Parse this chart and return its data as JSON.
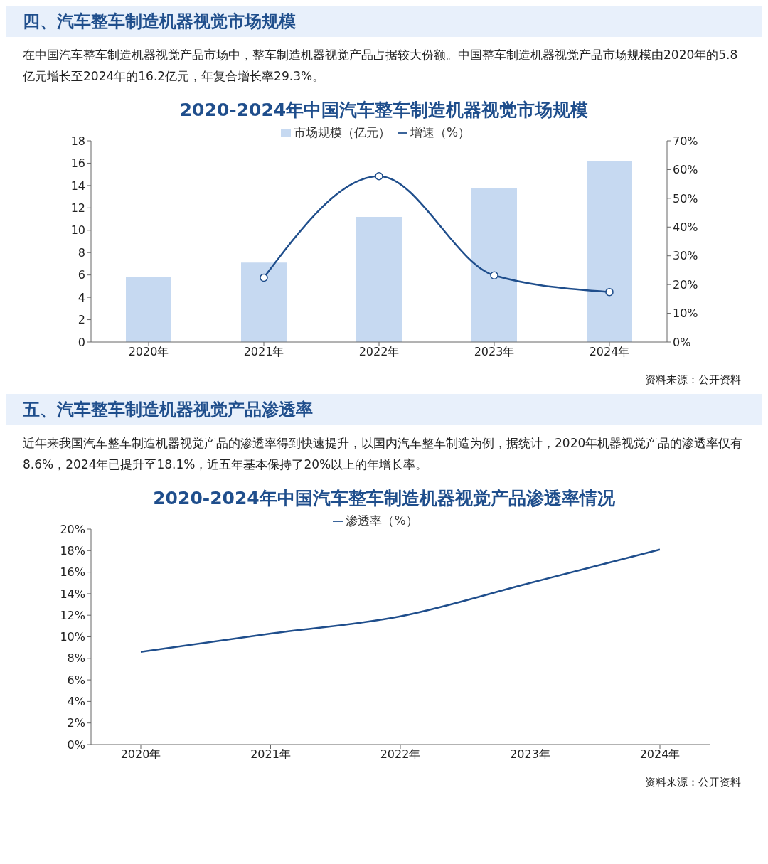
{
  "chart_data": [
    {
      "type": "bar",
      "title": "2020-2024年中国汽车整车制造机器视觉市场规模",
      "annotations": [
        "四、汽车整车制造机器视觉市场规模",
        "在中国汽车整车制造机器视觉产品市场中，整车制造机器视觉产品占据较大份额。中国整车制造机器视觉产品市场规模由2020年的5.8亿元增长至2024年的16.2亿元，年复合增长率29.3%。",
        "资料来源：公开资料"
      ],
      "categories": [
        "2020年",
        "2021年",
        "2022年",
        "2023年",
        "2024年"
      ],
      "series": [
        {
          "name": "市场规模（亿元）",
          "type": "bar",
          "color": "#c6d9f1",
          "values": [
            5.8,
            7.1,
            11.2,
            13.8,
            16.2
          ]
        },
        {
          "name": "增速（%）",
          "type": "line",
          "axis": "y2",
          "color": "#1f4e8c",
          "marker": "circle",
          "values": [
            null,
            22.4,
            57.7,
            23.2,
            17.4
          ]
        }
      ],
      "ylim": [
        0,
        18
      ],
      "yticks": [
        0,
        2,
        4,
        6,
        8,
        10,
        12,
        14,
        16,
        18
      ],
      "y2lim": [
        0,
        70
      ],
      "y2ticks": [
        {
          "value": 0,
          "label": "0%"
        },
        {
          "value": 10,
          "label": "10%"
        },
        {
          "value": 20,
          "label": "20%"
        },
        {
          "value": 30,
          "label": "30%"
        },
        {
          "value": 40,
          "label": "40%"
        },
        {
          "value": 50,
          "label": "50%"
        },
        {
          "value": 60,
          "label": "60%"
        },
        {
          "value": 70,
          "label": "70%"
        }
      ],
      "legend": "top",
      "grid": false
    },
    {
      "type": "line",
      "title": "2020-2024年中国汽车整车制造机器视觉产品渗透率情况",
      "annotations": [
        "五、汽车整车制造机器视觉产品渗透率",
        "近年来我国汽车整车制造机器视觉产品的渗透率得到快速提升，以国内汽车整车制造为例，据统计，2020年机器视觉产品的渗透率仅有8.6%，2024年已提升至18.1%，近五年基本保持了20%以上的年增长率。",
        "资料来源：公开资料"
      ],
      "categories": [
        "2020年",
        "2021年",
        "2022年",
        "2023年",
        "2024年"
      ],
      "series": [
        {
          "name": "渗透率（%）",
          "color": "#1f4e8c",
          "values": [
            8.6,
            10.3,
            11.9,
            15.0,
            18.1
          ]
        }
      ],
      "ylim": [
        0,
        20
      ],
      "yticks": [
        {
          "value": 0,
          "label": "0%"
        },
        {
          "value": 2,
          "label": "2%"
        },
        {
          "value": 4,
          "label": "4%"
        },
        {
          "value": 6,
          "label": "6%"
        },
        {
          "value": 8,
          "label": "8%"
        },
        {
          "value": 10,
          "label": "10%"
        },
        {
          "value": 12,
          "label": "12%"
        },
        {
          "value": 14,
          "label": "14%"
        },
        {
          "value": 16,
          "label": "16%"
        },
        {
          "value": 18,
          "label": "18%"
        },
        {
          "value": 20,
          "label": "20%"
        }
      ],
      "marker": "none",
      "legend": "top",
      "grid": false
    }
  ]
}
